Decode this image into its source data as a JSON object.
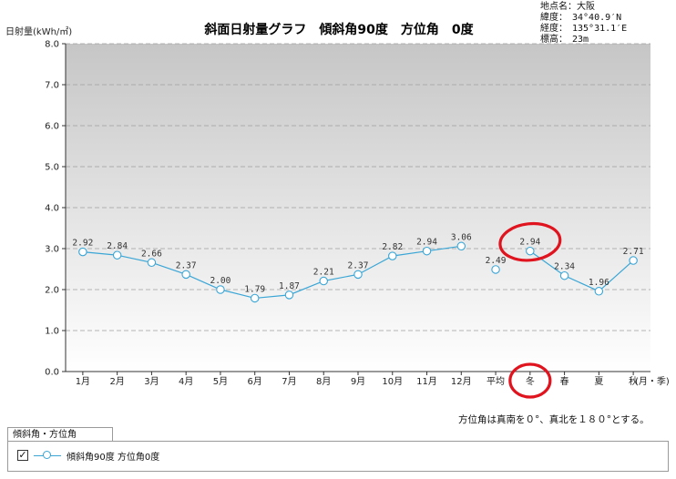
{
  "header": {
    "title": "斜面日射量グラフ　傾斜角90度　方位角　0度",
    "ylabel": "日射量(kWh/㎡)",
    "xlabel": "(月・季)"
  },
  "location": {
    "lines": [
      "地点名：大阪",
      "緯度：　34°40.9′N",
      "経度：　135°31.1′E",
      "標高：　23m"
    ]
  },
  "note": "方位角は真南を０°、真北を１８０°とする。",
  "legend": {
    "tab_label": "傾斜角・方位角",
    "check_mark": "✓",
    "item_label": "傾斜角90度 方位角0度"
  },
  "chart_data": {
    "type": "line",
    "title": "斜面日射量グラフ　傾斜角90度　方位角　0度",
    "xlabel": "(月・季)",
    "ylabel": "日射量(kWh/㎡)",
    "ylim": [
      0,
      8
    ],
    "yticks": [
      "0.0",
      "1.0",
      "2.0",
      "3.0",
      "4.0",
      "5.0",
      "6.0",
      "7.0",
      "8.0"
    ],
    "categories": [
      "1月",
      "2月",
      "3月",
      "4月",
      "5月",
      "6月",
      "7月",
      "8月",
      "9月",
      "10月",
      "11月",
      "12月",
      "平均",
      "冬",
      "春",
      "夏",
      "秋"
    ],
    "series": [
      {
        "name": "傾斜角90度 方位角0度",
        "values": [
          2.92,
          2.84,
          2.66,
          2.37,
          2.0,
          1.79,
          1.87,
          2.21,
          2.37,
          2.82,
          2.94,
          3.06,
          2.49,
          2.94,
          2.34,
          1.96,
          2.71
        ],
        "labels": [
          "2.92",
          "2.84",
          "2.66",
          "2.37",
          "2.00",
          "1.79",
          "1.87",
          "2.21",
          "2.37",
          "2.82",
          "2.94",
          "3.06",
          "2.49",
          "2.94",
          "2.34",
          "1.96",
          "2.71"
        ]
      }
    ],
    "line_segments": [
      [
        0,
        11
      ],
      [
        13,
        16
      ]
    ],
    "grid": true,
    "legend_position": "bottom-left",
    "annotations": [
      {
        "type": "circle",
        "target": "value",
        "index": 13,
        "color": "#e0141e"
      },
      {
        "type": "circle",
        "target": "category",
        "index": 13,
        "color": "#e0141e"
      }
    ],
    "colors": {
      "line": "#3aa6d6",
      "annotation": "#e0141e",
      "grid": "#9e9e9e"
    }
  }
}
